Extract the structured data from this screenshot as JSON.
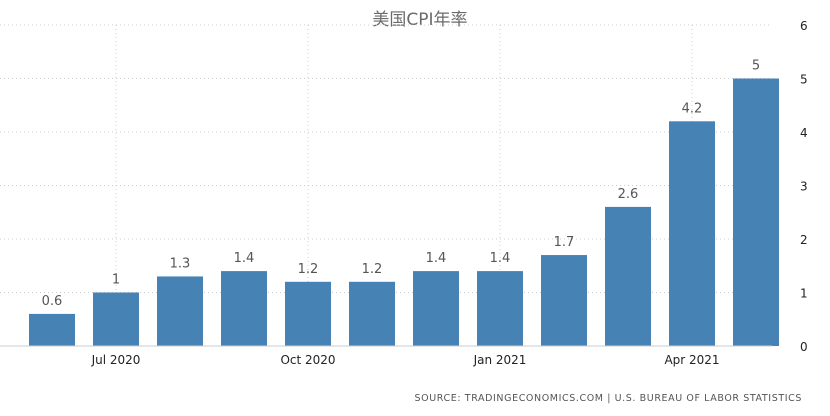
{
  "chart_data": {
    "type": "bar",
    "title": "美国CPI年率",
    "categories": [
      "2020-06",
      "2020-07",
      "2020-08",
      "2020-09",
      "2020-10",
      "2020-11",
      "2020-12",
      "2021-01",
      "2021-02",
      "2021-03",
      "2021-04",
      "2021-05"
    ],
    "values": [
      0.6,
      1,
      1.3,
      1.4,
      1.2,
      1.2,
      1.4,
      1.4,
      1.7,
      2.6,
      4.2,
      5
    ],
    "data_labels": [
      "0.6",
      "1",
      "1.3",
      "1.4",
      "1.2",
      "1.2",
      "1.4",
      "1.4",
      "1.7",
      "2.6",
      "4.2",
      "5"
    ],
    "x_tick_labels": [
      {
        "label": "Jul 2020",
        "category": "2020-07"
      },
      {
        "label": "Oct 2020",
        "category": "2020-10"
      },
      {
        "label": "Jan 2021",
        "category": "2021-01"
      },
      {
        "label": "Apr 2021",
        "category": "2021-04"
      }
    ],
    "y_ticks": [
      0,
      1,
      2,
      3,
      4,
      5,
      6
    ],
    "ylim": [
      0,
      6
    ],
    "y_axis_side": "right",
    "grid": true,
    "xlabel": "",
    "ylabel": "",
    "bar_color": "#4682b4",
    "source": "SOURCE: TRADINGECONOMICS.COM | U.S. BUREAU OF LABOR STATISTICS"
  }
}
